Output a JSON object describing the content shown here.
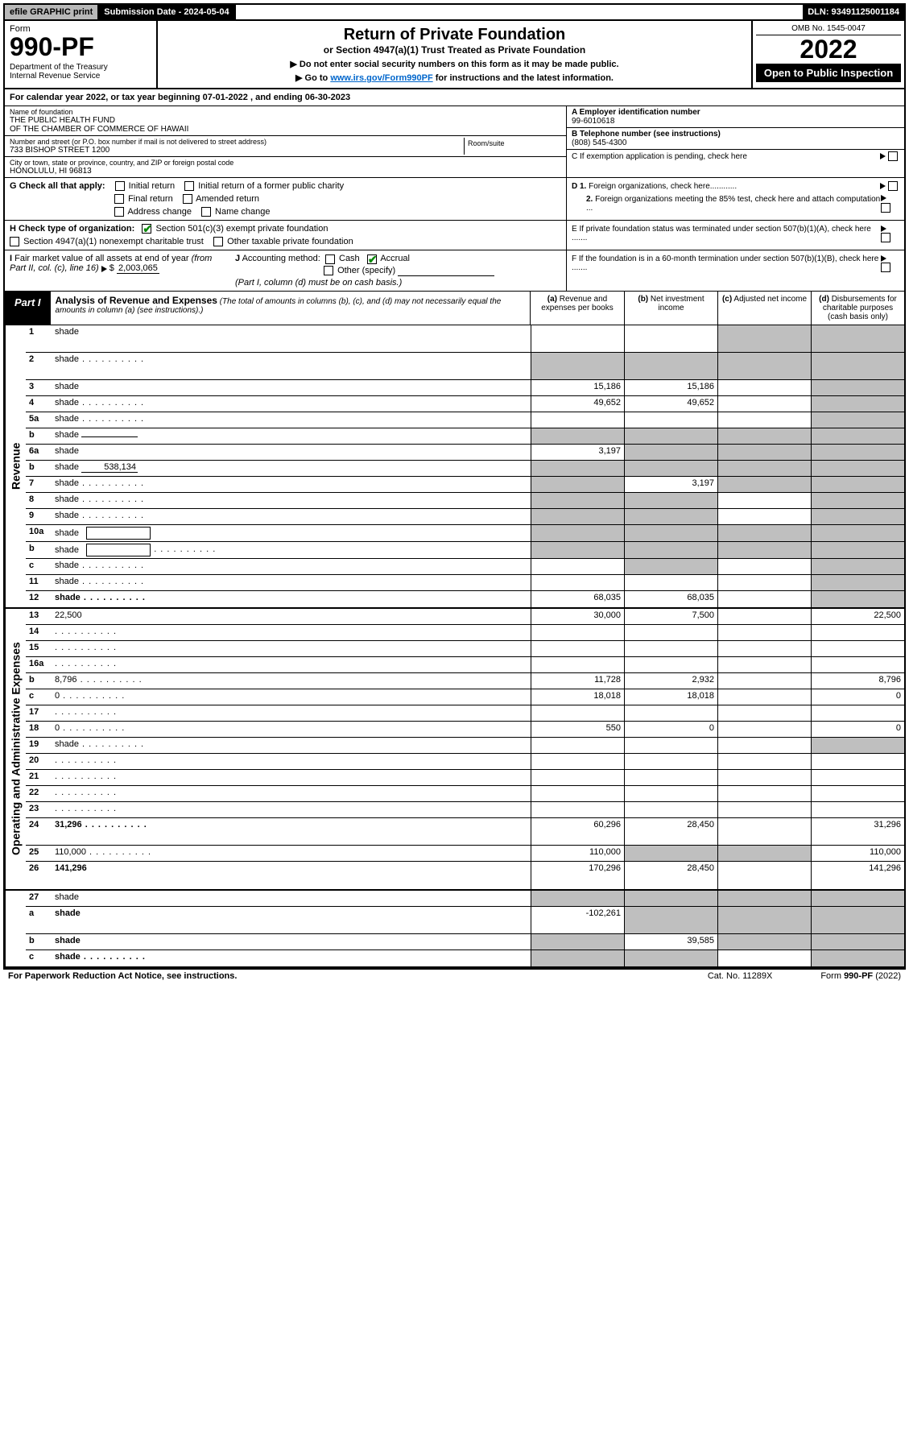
{
  "topbar": {
    "efile": "efile GRAPHIC print",
    "submission": "Submission Date - 2024-05-04",
    "dln": "DLN: 93491125001184"
  },
  "header": {
    "form_label": "Form",
    "form_no": "990-PF",
    "dept": "Department of the Treasury\nInternal Revenue Service",
    "title": "Return of Private Foundation",
    "subtitle": "or Section 4947(a)(1) Trust Treated as Private Foundation",
    "note1": "▶ Do not enter social security numbers on this form as it may be made public.",
    "note2_pre": "▶ Go to ",
    "note2_link": "www.irs.gov/Form990PF",
    "note2_post": " for instructions and the latest information.",
    "omb": "OMB No. 1545-0047",
    "year": "2022",
    "open": "Open to Public Inspection"
  },
  "cal_year": "For calendar year 2022, or tax year beginning 07-01-2022             , and ending 06-30-2023",
  "info": {
    "name_label": "Name of foundation",
    "name1": "THE PUBLIC HEALTH FUND",
    "name2": "OF THE CHAMBER OF COMMERCE OF HAWAII",
    "addr_label": "Number and street (or P.O. box number if mail is not delivered to street address)",
    "addr": "733 BISHOP STREET 1200",
    "room_label": "Room/suite",
    "city_label": "City or town, state or province, country, and ZIP or foreign postal code",
    "city": "HONOLULU, HI  96813",
    "ein_label": "A Employer identification number",
    "ein": "99-6010618",
    "tel_label": "B Telephone number (see instructions)",
    "tel": "(808) 545-4300",
    "c_label": "C If exemption application is pending, check here",
    "d1": "D 1. Foreign organizations, check here............",
    "d2": "2. Foreign organizations meeting the 85% test, check here and attach computation ...",
    "e": "E  If private foundation status was terminated under section 507(b)(1)(A), check here .......",
    "f": "F  If the foundation is in a 60-month termination under section 507(b)(1)(B), check here .......",
    "g_label": "G Check all that apply:",
    "g_initial": "Initial return",
    "g_initial_former": "Initial return of a former public charity",
    "g_final": "Final return",
    "g_amended": "Amended return",
    "g_addr": "Address change",
    "g_name": "Name change",
    "h_label": "H Check type of organization:",
    "h_501c3": "Section 501(c)(3) exempt private foundation",
    "h_4947": "Section 4947(a)(1) nonexempt charitable trust",
    "h_other": "Other taxable private foundation",
    "i_label": "I Fair market value of all assets at end of year (from Part II, col. (c), line 16)",
    "i_val": "2,003,065",
    "j_label": "J Accounting method:",
    "j_cash": "Cash",
    "j_accrual": "Accrual",
    "j_other": "Other (specify)",
    "j_note": "(Part I, column (d) must be on cash basis.)"
  },
  "part1": {
    "label": "Part I",
    "title": "Analysis of Revenue and Expenses",
    "title_note": "(The total of amounts in columns (b), (c), and (d) may not necessarily equal the amounts in column (a) (see instructions).)",
    "col_a": "(a)   Revenue and expenses per books",
    "col_b": "(b)   Net investment income",
    "col_c": "(c)   Adjusted net income",
    "col_d": "(d)  Disbursements for charitable purposes (cash basis only)"
  },
  "sections": {
    "revenue": "Revenue",
    "op_admin": "Operating and Administrative Expenses"
  },
  "rows": [
    {
      "n": "1",
      "d": "shade",
      "a": "",
      "b": "",
      "c": "shade",
      "tall": true
    },
    {
      "n": "2",
      "d": "shade",
      "a": "shade",
      "b": "shade",
      "c": "shade",
      "tall": true,
      "dots": true,
      "bold_not": true
    },
    {
      "n": "3",
      "d": "shade",
      "a": "15,186",
      "b": "15,186",
      "c": ""
    },
    {
      "n": "4",
      "d": "shade",
      "a": "49,652",
      "b": "49,652",
      "c": "",
      "dots": true
    },
    {
      "n": "5a",
      "d": "shade",
      "a": "",
      "b": "",
      "c": "",
      "dots": true
    },
    {
      "n": "b",
      "d": "shade",
      "a": "shade",
      "b": "shade",
      "c": "shade",
      "inline": ""
    },
    {
      "n": "6a",
      "d": "shade",
      "a": "3,197",
      "b": "shade",
      "c": "shade"
    },
    {
      "n": "b",
      "d": "shade",
      "a": "shade",
      "b": "shade",
      "c": "shade",
      "inline": "538,134"
    },
    {
      "n": "7",
      "d": "shade",
      "a": "shade",
      "b": "3,197",
      "c": "shade",
      "dots": true
    },
    {
      "n": "8",
      "d": "shade",
      "a": "shade",
      "b": "shade",
      "c": "",
      "dots": true
    },
    {
      "n": "9",
      "d": "shade",
      "a": "shade",
      "b": "shade",
      "c": "",
      "dots": true
    },
    {
      "n": "10a",
      "d": "shade",
      "a": "shade",
      "b": "shade",
      "c": "shade",
      "box": true
    },
    {
      "n": "b",
      "d": "shade",
      "a": "shade",
      "b": "shade",
      "c": "shade",
      "dots": true,
      "box": true
    },
    {
      "n": "c",
      "d": "shade",
      "a": "",
      "b": "shade",
      "c": "",
      "dots": true
    },
    {
      "n": "11",
      "d": "shade",
      "a": "",
      "b": "",
      "c": "",
      "dots": true
    },
    {
      "n": "12",
      "d": "shade",
      "a": "68,035",
      "b": "68,035",
      "c": "",
      "bold": true,
      "dots": true
    }
  ],
  "exp_rows": [
    {
      "n": "13",
      "d": "22,500",
      "a": "30,000",
      "b": "7,500",
      "c": ""
    },
    {
      "n": "14",
      "d": "",
      "a": "",
      "b": "",
      "c": "",
      "dots": true
    },
    {
      "n": "15",
      "d": "",
      "a": "",
      "b": "",
      "c": "",
      "dots": true
    },
    {
      "n": "16a",
      "d": "",
      "a": "",
      "b": "",
      "c": "",
      "dots": true
    },
    {
      "n": "b",
      "d": "8,796",
      "a": "11,728",
      "b": "2,932",
      "c": "",
      "dots": true
    },
    {
      "n": "c",
      "d": "0",
      "a": "18,018",
      "b": "18,018",
      "c": "",
      "dots": true
    },
    {
      "n": "17",
      "d": "",
      "a": "",
      "b": "",
      "c": "",
      "dots": true
    },
    {
      "n": "18",
      "d": "0",
      "a": "550",
      "b": "0",
      "c": "",
      "dots": true
    },
    {
      "n": "19",
      "d": "shade",
      "a": "",
      "b": "",
      "c": "",
      "dots": true
    },
    {
      "n": "20",
      "d": "",
      "a": "",
      "b": "",
      "c": "",
      "dots": true
    },
    {
      "n": "21",
      "d": "",
      "a": "",
      "b": "",
      "c": "",
      "dots": true
    },
    {
      "n": "22",
      "d": "",
      "a": "",
      "b": "",
      "c": "",
      "dots": true
    },
    {
      "n": "23",
      "d": "",
      "a": "",
      "b": "",
      "c": "",
      "dots": true
    },
    {
      "n": "24",
      "d": "31,296",
      "a": "60,296",
      "b": "28,450",
      "c": "",
      "bold": true,
      "tall": true,
      "dots": true
    },
    {
      "n": "25",
      "d": "110,000",
      "a": "110,000",
      "b": "shade",
      "c": "shade",
      "dots": true
    },
    {
      "n": "26",
      "d": "141,296",
      "a": "170,296",
      "b": "28,450",
      "c": "",
      "bold": true,
      "tall": true
    }
  ],
  "net_rows": [
    {
      "n": "27",
      "d": "shade",
      "a": "shade",
      "b": "shade",
      "c": "shade"
    },
    {
      "n": "a",
      "d": "shade",
      "a": "-102,261",
      "b": "shade",
      "c": "shade",
      "bold": true,
      "tall": true
    },
    {
      "n": "b",
      "d": "shade",
      "a": "shade",
      "b": "39,585",
      "c": "shade",
      "bold": true
    },
    {
      "n": "c",
      "d": "shade",
      "a": "shade",
      "b": "shade",
      "c": "",
      "bold": true,
      "dots": true
    }
  ],
  "footer": {
    "left": "For Paperwork Reduction Act Notice, see instructions.",
    "mid": "Cat. No. 11289X",
    "right": "Form 990-PF (2022)"
  }
}
